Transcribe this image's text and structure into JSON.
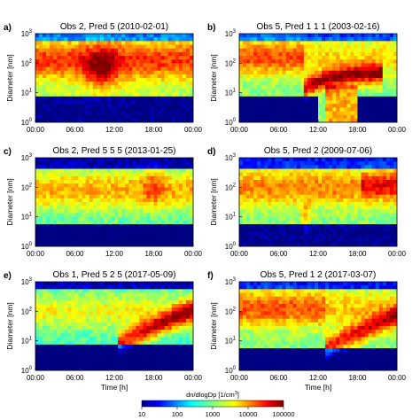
{
  "figure": {
    "xlabel": "Time [h]",
    "ylabel": "Diameter [nm]",
    "x_ticks": [
      "00:00",
      "06:00",
      "12:00",
      "18:00",
      "00:00"
    ],
    "y_ticks": [
      {
        "base": "10",
        "exp": "0"
      },
      {
        "base": "10",
        "exp": "1"
      },
      {
        "base": "10",
        "exp": "2"
      },
      {
        "base": "10",
        "exp": "3"
      }
    ],
    "colorbar": {
      "label_main": "dn/dlogDp [1/cm",
      "label_sup": "3",
      "label_end": "]",
      "ticks": [
        "10",
        "100",
        "1000",
        "10000",
        "100000"
      ]
    }
  },
  "chart_data": [
    {
      "type": "heatmap",
      "panel": "a)",
      "title": "Obs 2, Pred 5 (2010-02-01)",
      "x_range": [
        "00:00",
        "24:00"
      ],
      "y_range": [
        1,
        1000
      ],
      "y_scale": "log",
      "colormap": "jet",
      "color_range": [
        10,
        100000
      ]
    },
    {
      "type": "heatmap",
      "panel": "b)",
      "title": "Obs 5, Pred 1  1  1 (2003-02-16)",
      "x_range": [
        "00:00",
        "24:00"
      ],
      "y_range": [
        1,
        1000
      ],
      "y_scale": "log",
      "colormap": "jet",
      "color_range": [
        10,
        100000
      ]
    },
    {
      "type": "heatmap",
      "panel": "c)",
      "title": "Obs 2, Pred 5  5  5 (2013-01-25)",
      "x_range": [
        "00:00",
        "24:00"
      ],
      "y_range": [
        1,
        1000
      ],
      "y_scale": "log",
      "colormap": "jet",
      "color_range": [
        10,
        100000
      ]
    },
    {
      "type": "heatmap",
      "panel": "d)",
      "title": "Obs 5, Pred 2 (2009-07-06)",
      "x_range": [
        "00:00",
        "24:00"
      ],
      "y_range": [
        1,
        1000
      ],
      "y_scale": "log",
      "colormap": "jet",
      "color_range": [
        10,
        100000
      ]
    },
    {
      "type": "heatmap",
      "panel": "e)",
      "title": "Obs 1, Pred 5  2  5 (2017-05-09)",
      "x_range": [
        "00:00",
        "24:00"
      ],
      "y_range": [
        1,
        1000
      ],
      "y_scale": "log",
      "colormap": "jet",
      "color_range": [
        10,
        100000
      ]
    },
    {
      "type": "heatmap",
      "panel": "f)",
      "title": "Obs 5, Pred 1  2 (2017-03-07)",
      "x_range": [
        "00:00",
        "24:00"
      ],
      "y_range": [
        1,
        1000
      ],
      "y_scale": "log",
      "colormap": "jet",
      "color_range": [
        10,
        100000
      ]
    }
  ]
}
